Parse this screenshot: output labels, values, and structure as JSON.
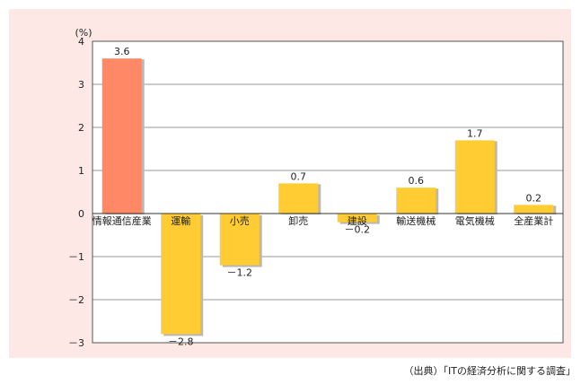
{
  "chart_data": {
    "type": "bar",
    "unit_label": "(%)",
    "categories": [
      "情報通信産業",
      "運輸",
      "小売",
      "卸売",
      "建設",
      "輸送機械",
      "電気機械",
      "全産業計"
    ],
    "values": [
      3.6,
      -2.8,
      -1.2,
      0.7,
      -0.2,
      0.6,
      1.7,
      0.2
    ],
    "value_labels": [
      "3.6",
      "－2.8",
      "－1.2",
      "0.7",
      "－0.2",
      "0.6",
      "1.7",
      "0.2"
    ],
    "ylim": [
      -3,
      4
    ],
    "yticks": [
      4,
      3,
      2,
      1,
      0,
      -1,
      -2,
      -3
    ],
    "ytick_labels": [
      "4",
      "3",
      "2",
      "1",
      "0",
      "－1",
      "－2",
      "－3"
    ],
    "grid": true,
    "colors": {
      "highlight": "#ff8866",
      "bar": "#ffcc33",
      "bar_shadow": "#b8b8b8",
      "frame_background": "#fde8e6",
      "plot_background": "#ffffff",
      "grid": "#9a9a9a"
    }
  },
  "source": "（出典）「ITの経済分析に関する調査」"
}
